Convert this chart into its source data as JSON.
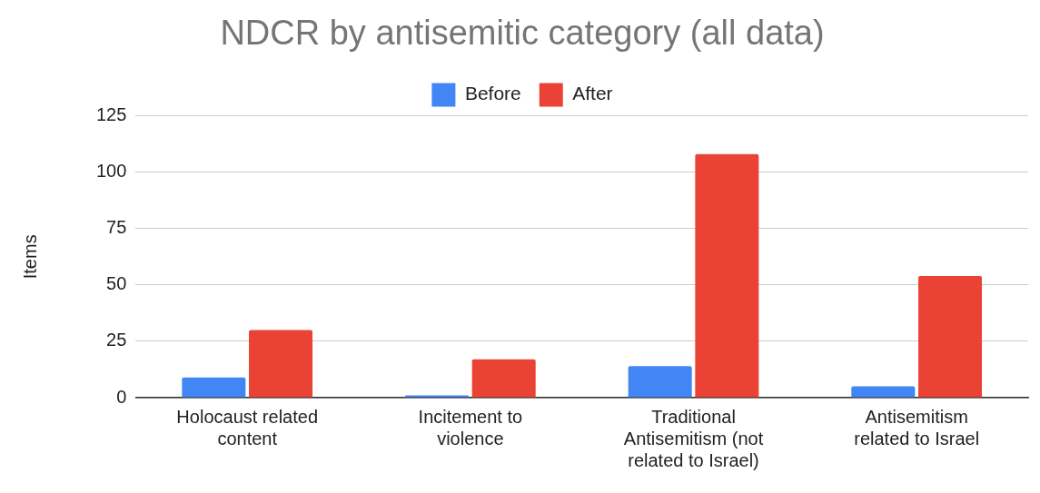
{
  "chart_data": {
    "type": "bar",
    "title": "NDCR by antisemitic category (all data)",
    "ylabel": "Items",
    "categories": [
      "Holocaust related content",
      "Incitement to violence",
      "Traditional Antisemitism (not related to Israel)",
      "Antisemitism related to Israel"
    ],
    "series": [
      {
        "name": "Before",
        "color": "#4285f4",
        "values": [
          9,
          1,
          14,
          5
        ]
      },
      {
        "name": "After",
        "color": "#ea4335",
        "values": [
          30,
          17,
          108,
          54
        ]
      }
    ],
    "ylim": [
      0,
      125
    ],
    "yticks": [
      0,
      25,
      50,
      75,
      100,
      125
    ],
    "grid": "y",
    "legend": "top"
  }
}
